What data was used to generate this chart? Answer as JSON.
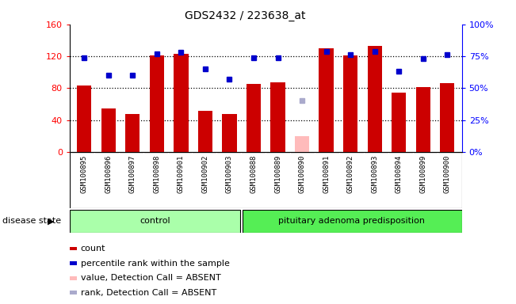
{
  "title": "GDS2432 / 223638_at",
  "samples": [
    "GSM100895",
    "GSM100896",
    "GSM100897",
    "GSM100898",
    "GSM100901",
    "GSM100902",
    "GSM100903",
    "GSM100888",
    "GSM100889",
    "GSM100890",
    "GSM100891",
    "GSM100892",
    "GSM100893",
    "GSM100894",
    "GSM100899",
    "GSM100900"
  ],
  "bar_values": [
    83,
    55,
    48,
    121,
    123,
    52,
    48,
    85,
    87,
    20,
    130,
    121,
    133,
    74,
    81,
    86
  ],
  "bar_absent": [
    false,
    false,
    false,
    false,
    false,
    false,
    false,
    false,
    false,
    true,
    false,
    false,
    false,
    false,
    false,
    false
  ],
  "rank_values": [
    74,
    60,
    60,
    77,
    78,
    65,
    57,
    74,
    74,
    40,
    79,
    76,
    79,
    63,
    73,
    76
  ],
  "rank_absent": [
    false,
    false,
    false,
    false,
    false,
    false,
    false,
    false,
    false,
    true,
    false,
    false,
    false,
    false,
    false,
    false
  ],
  "control_count": 7,
  "disease_label": "pituitary adenoma predisposition",
  "control_label": "control",
  "disease_state_label": "disease state",
  "ylim_left": [
    0,
    160
  ],
  "ylim_right": [
    0,
    100
  ],
  "yticks_left": [
    0,
    40,
    80,
    120,
    160
  ],
  "yticks_right": [
    0,
    25,
    50,
    75,
    100
  ],
  "ytick_labels_right": [
    "0%",
    "25%",
    "50%",
    "75%",
    "100%"
  ],
  "bar_color": "#cc0000",
  "bar_absent_color": "#ffbbbb",
  "rank_color": "#0000cc",
  "rank_absent_color": "#aaaacc",
  "dotted_lines": [
    40,
    80,
    120
  ],
  "legend_labels": [
    "count",
    "percentile rank within the sample",
    "value, Detection Call = ABSENT",
    "rank, Detection Call = ABSENT"
  ],
  "legend_colors": [
    "#cc0000",
    "#0000cc",
    "#ffbbbb",
    "#aaaacc"
  ]
}
